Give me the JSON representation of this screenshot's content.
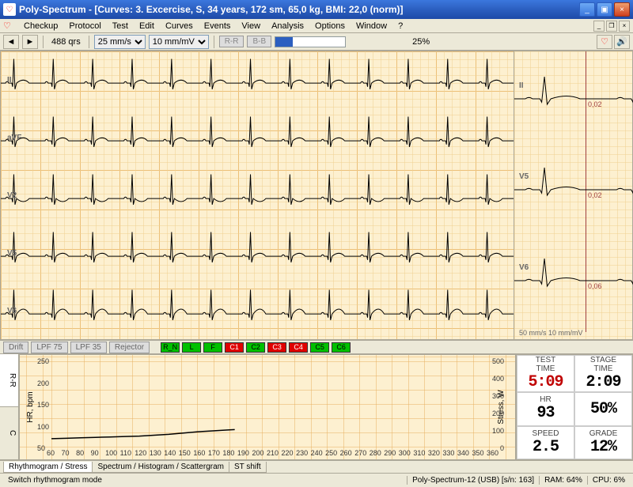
{
  "titlebar": {
    "app_name": "Poly-Spectrum",
    "document": "[Curves: 3. Excercise, S, 34 years, 172 sm, 65,0 kg, BMI: 22,0 (norm)]"
  },
  "menu": [
    "Checkup",
    "Protocol",
    "Test",
    "Edit",
    "Curves",
    "Events",
    "View",
    "Analysis",
    "Options",
    "Window",
    "?"
  ],
  "toolbar": {
    "qrs_count": "488 qrs",
    "speed_options": [
      "25 mm/s"
    ],
    "speed_selected": "25 mm/s",
    "gain_options": [
      "10 mm/mV"
    ],
    "gain_selected": "10 mm/mV",
    "btn_rr": "R-R",
    "btn_bb": "B-B",
    "progress_pct": 25,
    "progress_label": "25%"
  },
  "ecg_main": {
    "leads": [
      "II",
      "aVF",
      "V2",
      "V5",
      "V6"
    ],
    "background_color": "#fdf0d0",
    "grid_minor_color": "#f0d090",
    "grid_major_color": "#e8b060",
    "waveform_color": "#000000"
  },
  "ecg_side": {
    "leads": [
      {
        "label": "II",
        "value": "0,02"
      },
      {
        "label": "V5",
        "value": "0,02"
      },
      {
        "label": "V6",
        "value": "0,06"
      }
    ],
    "footer": "50 mm/s 10 mm/mV",
    "marker_color": "#a04040"
  },
  "filterbar": {
    "buttons": [
      "Drift",
      "LPF 75",
      "LPF 35",
      "Rejector"
    ],
    "indicators": [
      {
        "label": "R_N",
        "color": "green"
      },
      {
        "label": "L",
        "color": "green"
      },
      {
        "label": "F",
        "color": "green"
      },
      {
        "label": "C1",
        "color": "red"
      },
      {
        "label": "C2",
        "color": "green"
      },
      {
        "label": "C3",
        "color": "red"
      },
      {
        "label": "C4",
        "color": "red"
      },
      {
        "label": "C5",
        "color": "green"
      },
      {
        "label": "C6",
        "color": "green"
      }
    ]
  },
  "bottom": {
    "vtabs": [
      "R-R",
      "C"
    ],
    "vtab_active": 0,
    "chart": {
      "type": "line",
      "ylabel": "HR, bpm",
      "ylabel_right": "Stress, W",
      "y_ticks": [
        50,
        100,
        150,
        200,
        250
      ],
      "y_ticks_right": [
        0,
        100,
        200,
        300,
        400,
        500
      ],
      "x_ticks": [
        60,
        70,
        80,
        90,
        100,
        110,
        120,
        130,
        140,
        150,
        160,
        170,
        180,
        190,
        200,
        210,
        220,
        230,
        240,
        250,
        260,
        270,
        280,
        290,
        300,
        310,
        320,
        330,
        340,
        350,
        360
      ],
      "ylim": [
        50,
        250
      ],
      "xlim": [
        60,
        360
      ],
      "line_color": "#000000",
      "grid_color": "#e8b060",
      "background_color": "#fdf0d0",
      "data": [
        [
          60,
          72
        ],
        [
          70,
          73
        ],
        [
          80,
          74
        ],
        [
          90,
          75
        ],
        [
          100,
          76
        ],
        [
          110,
          77
        ],
        [
          120,
          78
        ],
        [
          130,
          80
        ],
        [
          140,
          82
        ],
        [
          150,
          85
        ],
        [
          160,
          88
        ],
        [
          170,
          90
        ],
        [
          180,
          92
        ],
        [
          185,
          93
        ]
      ]
    },
    "stats": [
      {
        "title": "TEST",
        "subtitle": "TIME",
        "value": "5:09",
        "red": true
      },
      {
        "title": "STAGE",
        "subtitle": "TIME",
        "value": "2:09",
        "red": false
      },
      {
        "title": "HR",
        "subtitle": "",
        "value": "93",
        "red": false
      },
      {
        "title": "",
        "subtitle": "",
        "value": "50%",
        "red": false
      },
      {
        "title": "SPEED",
        "subtitle": "",
        "value": "2.5",
        "red": false
      },
      {
        "title": "GRADE",
        "subtitle": "",
        "value": "12%",
        "red": false
      }
    ]
  },
  "tabs": {
    "items": [
      "Rhythmogram / Stress",
      "Spectrum / Histogram / Scattergram",
      "ST shift"
    ],
    "active": 0
  },
  "statusbar": {
    "hint": "Switch rhythmogram mode",
    "device": "Poly-Spectrum-12 (USB) [s/n: 163]",
    "ram": "RAM: 64%",
    "cpu": "CPU: 6%"
  },
  "colors": {
    "titlebar_gradient": [
      "#3b77dd",
      "#1d4aa8"
    ],
    "ui_bg": "#ece9d8",
    "border": "#aca899"
  }
}
